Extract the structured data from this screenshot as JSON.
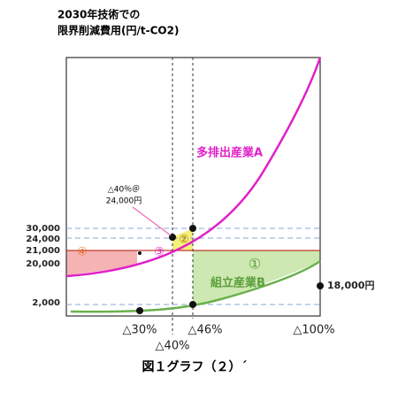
{
  "header": {
    "title_line1": "2030年技術での",
    "title_line2": "限界削減費用(円/t-CO2)"
  },
  "y_labels": [
    "30,000",
    "24,000",
    "21,000",
    "20,000",
    "2,000"
  ],
  "x_labels": [
    "△30%",
    "△40%",
    "△46%",
    "△100%"
  ],
  "curves": {
    "a": "多排出産業A",
    "b": "組立産業B"
  },
  "regions": [
    "①",
    "②",
    "③",
    "④"
  ],
  "annotation": {
    "line1": "△40％＠",
    "line2": "24,000円"
  },
  "end_label": "18,000円",
  "caption": "図１グラフ（２）´"
}
